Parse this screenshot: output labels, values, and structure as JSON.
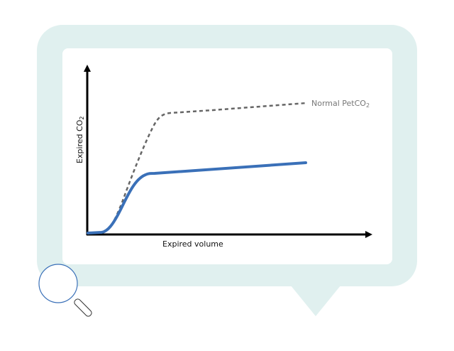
{
  "diagram": {
    "y_axis_label": "Expired CO",
    "y_axis_sub": "2",
    "x_axis_label": "Expired volume",
    "dashed_curve_label": "Normal PetCO",
    "dashed_curve_sub": "2",
    "colors": {
      "bubble": "#e0f0ef",
      "panel": "#ffffff",
      "measured_curve": "#3a70b8",
      "normal_curve": "#666666",
      "axes": "#000000",
      "magnifier": "#3a70b8"
    },
    "icons": [
      "magnifier-icon"
    ]
  }
}
